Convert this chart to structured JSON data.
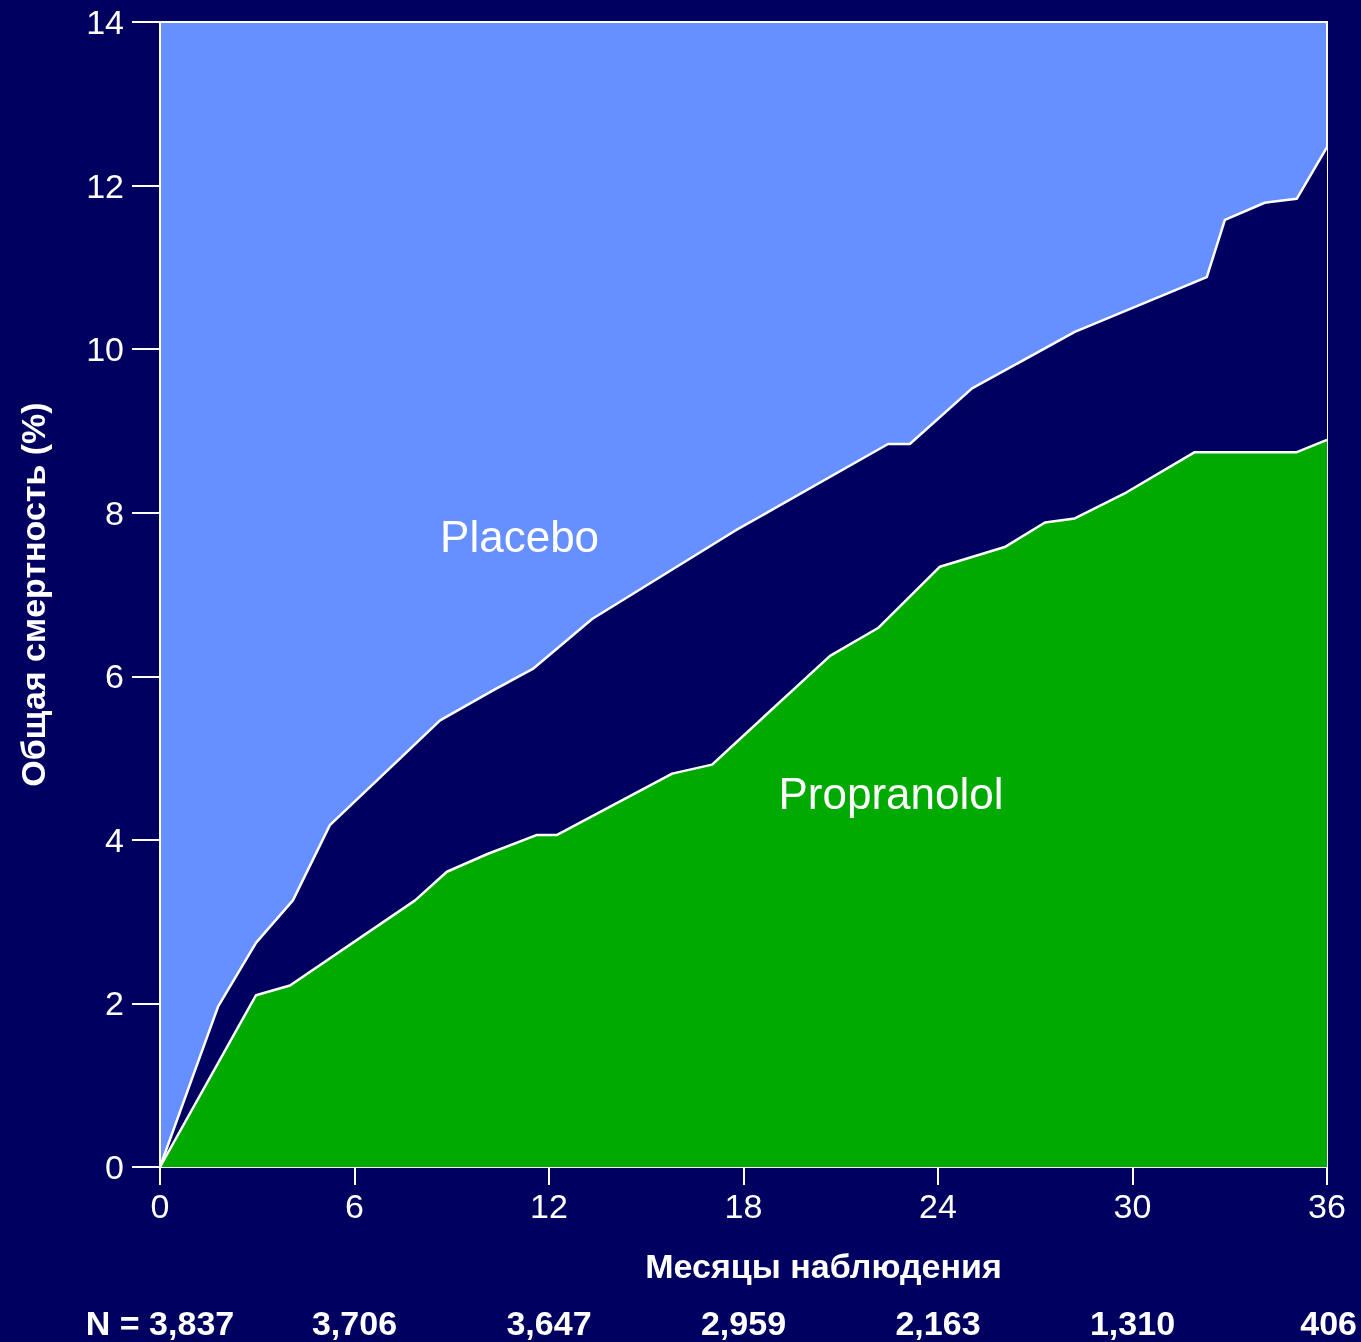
{
  "chart_data": {
    "type": "area",
    "xlabel": "Месяцы наблюдения",
    "ylabel": "Общая смертность (%)",
    "xlim": [
      0,
      36
    ],
    "xticks": [
      0,
      6,
      12,
      18,
      24,
      30,
      36
    ],
    "ylim": [
      0,
      14
    ],
    "yticks": [
      0,
      2,
      4,
      6,
      8,
      10,
      12,
      14
    ],
    "grid": false,
    "marker": "none",
    "series": [
      {
        "name": "Placebo",
        "color": "#000060",
        "x": [
          0,
          1.79,
          2.96,
          4.1,
          5.24,
          8.64,
          10.33,
          11.5,
          13.33,
          17.74,
          22.46,
          23.13,
          25.05,
          28.22,
          32.29,
          32.85,
          34.08,
          35.07,
          36
        ],
        "values": [
          0,
          1.96,
          2.74,
          3.26,
          4.18,
          5.46,
          5.84,
          6.09,
          6.7,
          7.78,
          8.84,
          8.84,
          9.52,
          10.21,
          10.88,
          11.58,
          11.79,
          11.84,
          12.47
        ]
      },
      {
        "name": "Propranolol",
        "color": "#00aa00",
        "x": [
          0,
          2.96,
          4.01,
          7.87,
          8.85,
          10.12,
          11.63,
          12.25,
          15.8,
          17.03,
          20.67,
          22.15,
          24.06,
          26.06,
          27.3,
          28.22,
          29.82,
          31.92,
          35.07,
          36
        ],
        "values": [
          0,
          2.1,
          2.22,
          3.26,
          3.61,
          3.83,
          4.06,
          4.06,
          4.81,
          4.92,
          6.25,
          6.59,
          7.34,
          7.58,
          7.88,
          7.93,
          8.25,
          8.74,
          8.74,
          8.89
        ]
      }
    ],
    "annotations": [
      "N = 3,837",
      "3,706",
      "3,647",
      "2,959",
      "2,163",
      "1,310",
      "406"
    ]
  }
}
